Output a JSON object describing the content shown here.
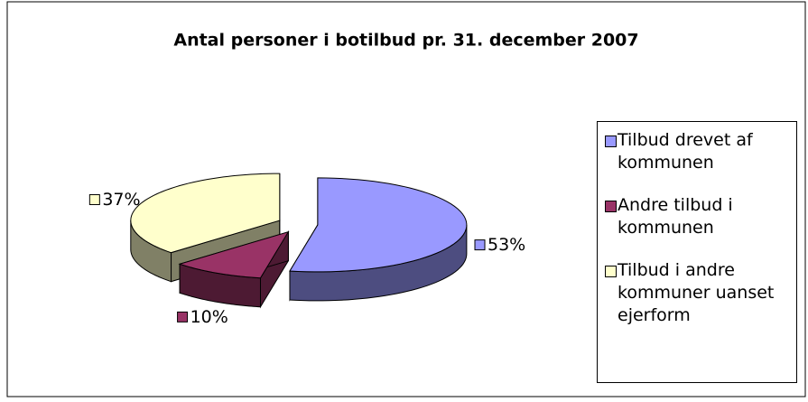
{
  "chart_data": {
    "type": "pie",
    "title": "Antal personer i botilbud pr. 31. december 2007",
    "categories": [
      "Tilbud drevet af kommunen",
      "Andre tilbud i kommunen",
      "Tilbud i andre kommuner uanset ejerform"
    ],
    "values": [
      53,
      10,
      37
    ],
    "value_labels": [
      "53%",
      "10%",
      "37%"
    ],
    "colors": [
      "#9999ff",
      "#993366",
      "#ffffcc"
    ],
    "legend": "right"
  }
}
